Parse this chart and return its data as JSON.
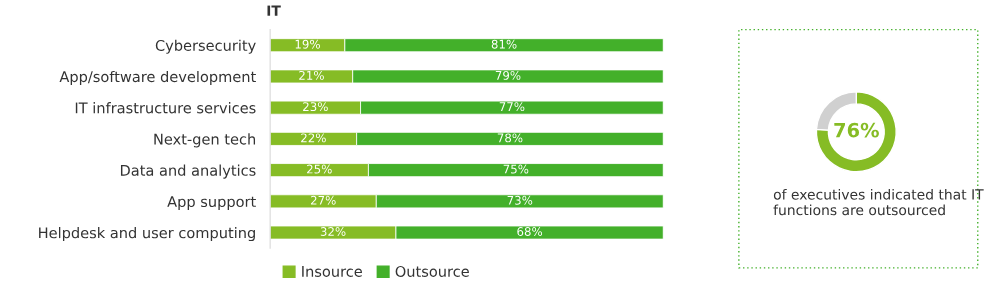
{
  "chart_data": [
    {
      "type": "bar",
      "orientation": "horizontal",
      "stacked": true,
      "title": "IT",
      "categories": [
        "Cybersecurity",
        "App/software development",
        "IT infrastructure services",
        "Next-gen tech",
        "Data and analytics",
        "App support",
        "Helpdesk and user computing"
      ],
      "series": [
        {
          "name": "Insource",
          "color": "#86bc25",
          "values": [
            19,
            21,
            23,
            22,
            25,
            27,
            32
          ],
          "value_labels": [
            "19%",
            "21%",
            "23%",
            "22%",
            "25%",
            "27%",
            "32%"
          ]
        },
        {
          "name": "Outsource",
          "color": "#43b02a",
          "values": [
            81,
            79,
            77,
            78,
            75,
            73,
            68
          ],
          "value_labels": [
            "81%",
            "79%",
            "77%",
            "78%",
            "75%",
            "73%",
            "68%"
          ]
        }
      ],
      "xlim": [
        0,
        100
      ],
      "tick_labels": "y",
      "grid": false,
      "legend": "bottom"
    },
    {
      "type": "donut",
      "categories": [
        null,
        null
      ],
      "values": [
        76,
        24
      ],
      "colors": [
        "#86bc25",
        "#d0d0d0"
      ],
      "value_labels": [
        "76%",
        null
      ],
      "annotations": [
        "of executives indicated that IT functions are outsourced"
      ]
    }
  ]
}
